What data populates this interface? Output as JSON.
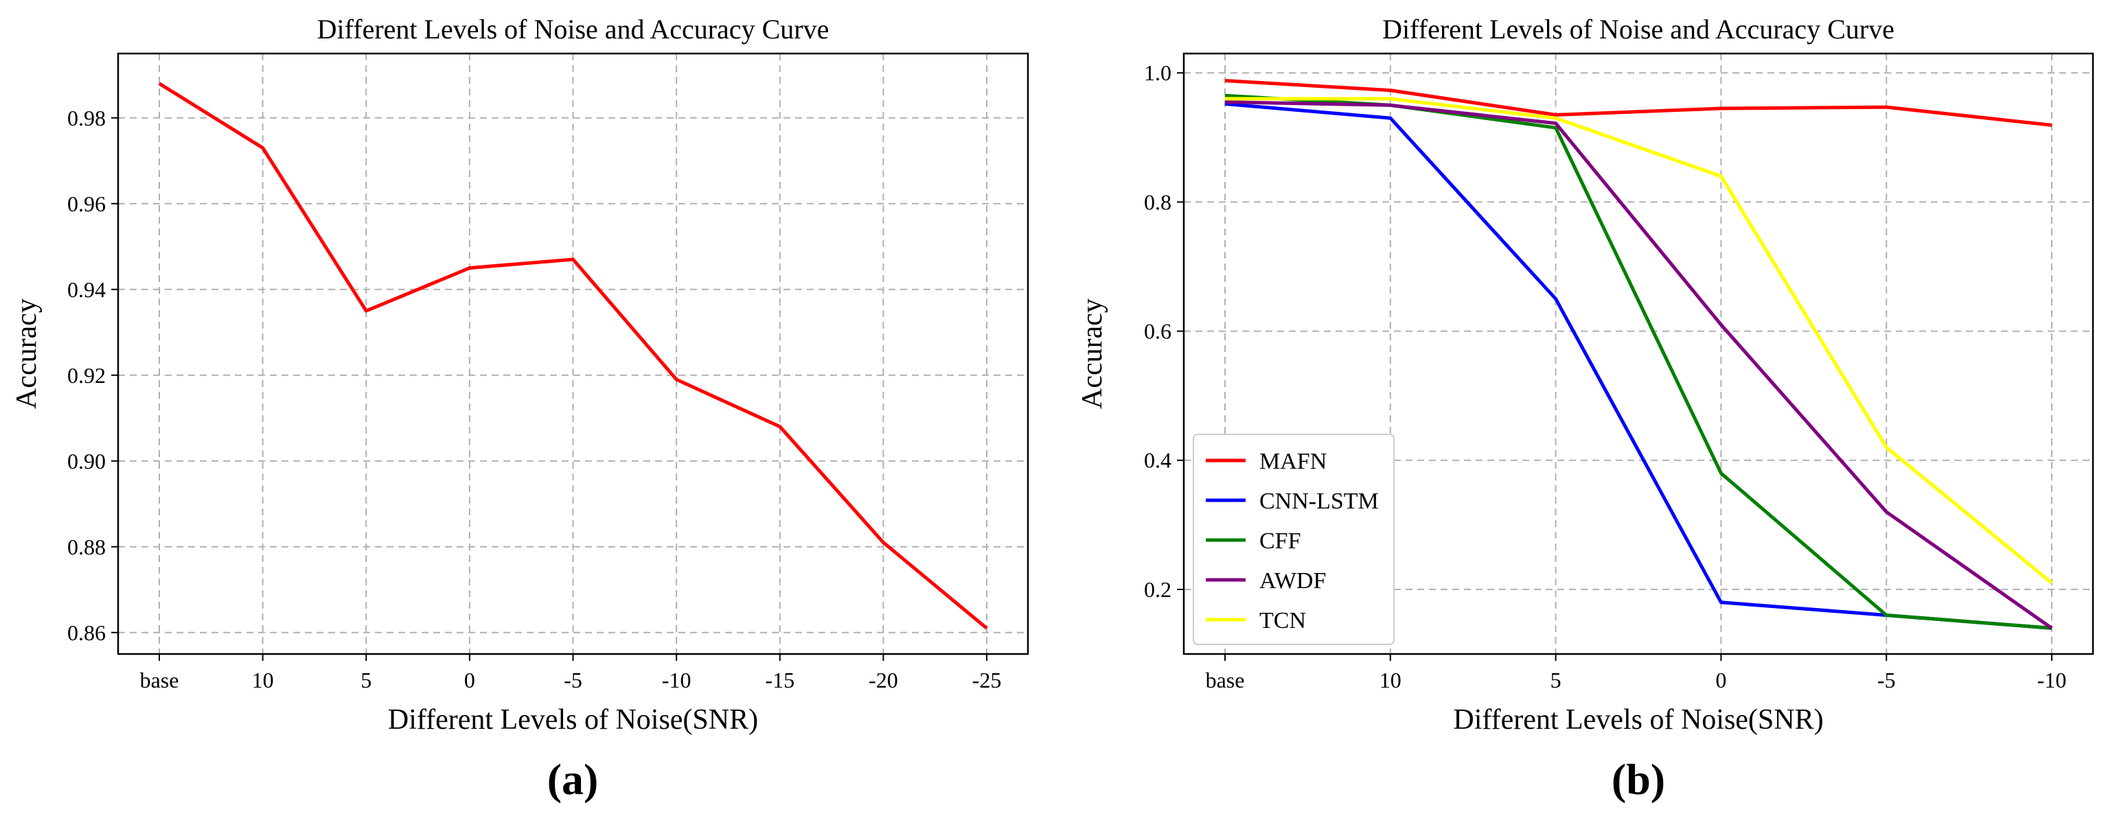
{
  "chart_data": [
    {
      "type": "line",
      "panel_label": "(a)",
      "title": "Different Levels of Noise and Accuracy Curve",
      "xlabel": "Different Levels of Noise(SNR)",
      "ylabel": "Accuracy",
      "categories": [
        "base",
        "10",
        "5",
        "0",
        "-5",
        "-10",
        "-15",
        "-20",
        "-25"
      ],
      "ylim": [
        0.855,
        0.995
      ],
      "yticks": [
        0.86,
        0.88,
        0.9,
        0.92,
        0.94,
        0.96,
        0.98
      ],
      "ytick_labels": [
        "0.86",
        "0.88",
        "0.90",
        "0.92",
        "0.94",
        "0.96",
        "0.98"
      ],
      "grid": true,
      "series": [
        {
          "color": "#ff0000",
          "values": [
            0.988,
            0.973,
            0.935,
            0.945,
            0.947,
            0.919,
            0.908,
            0.881,
            0.861
          ]
        }
      ]
    },
    {
      "type": "line",
      "panel_label": "(b)",
      "title": "Different Levels of Noise and Accuracy Curve",
      "xlabel": "Different Levels of Noise(SNR)",
      "ylabel": "Accuracy",
      "categories": [
        "base",
        "10",
        "5",
        "0",
        "-5",
        "-10"
      ],
      "ylim": [
        0.1,
        1.03
      ],
      "yticks": [
        0.2,
        0.4,
        0.6,
        0.8,
        1.0
      ],
      "ytick_labels": [
        "0.2",
        "0.4",
        "0.6",
        "0.8",
        "1.0"
      ],
      "grid": true,
      "legend_position": "lower-left",
      "series": [
        {
          "name": "MAFN",
          "color": "#ff0000",
          "values": [
            0.988,
            0.973,
            0.935,
            0.945,
            0.947,
            0.919
          ]
        },
        {
          "name": "CNN-LSTM",
          "color": "#0000ff",
          "values": [
            0.952,
            0.93,
            0.65,
            0.18,
            0.16,
            0.14
          ]
        },
        {
          "name": "CFF",
          "color": "#008000",
          "values": [
            0.965,
            0.95,
            0.915,
            0.38,
            0.16,
            0.14
          ]
        },
        {
          "name": "AWDF",
          "color": "#800080",
          "values": [
            0.955,
            0.95,
            0.922,
            0.61,
            0.32,
            0.14
          ]
        },
        {
          "name": "TCN",
          "color": "#ffff00",
          "values": [
            0.96,
            0.96,
            0.93,
            0.84,
            0.42,
            0.21
          ]
        }
      ]
    }
  ]
}
